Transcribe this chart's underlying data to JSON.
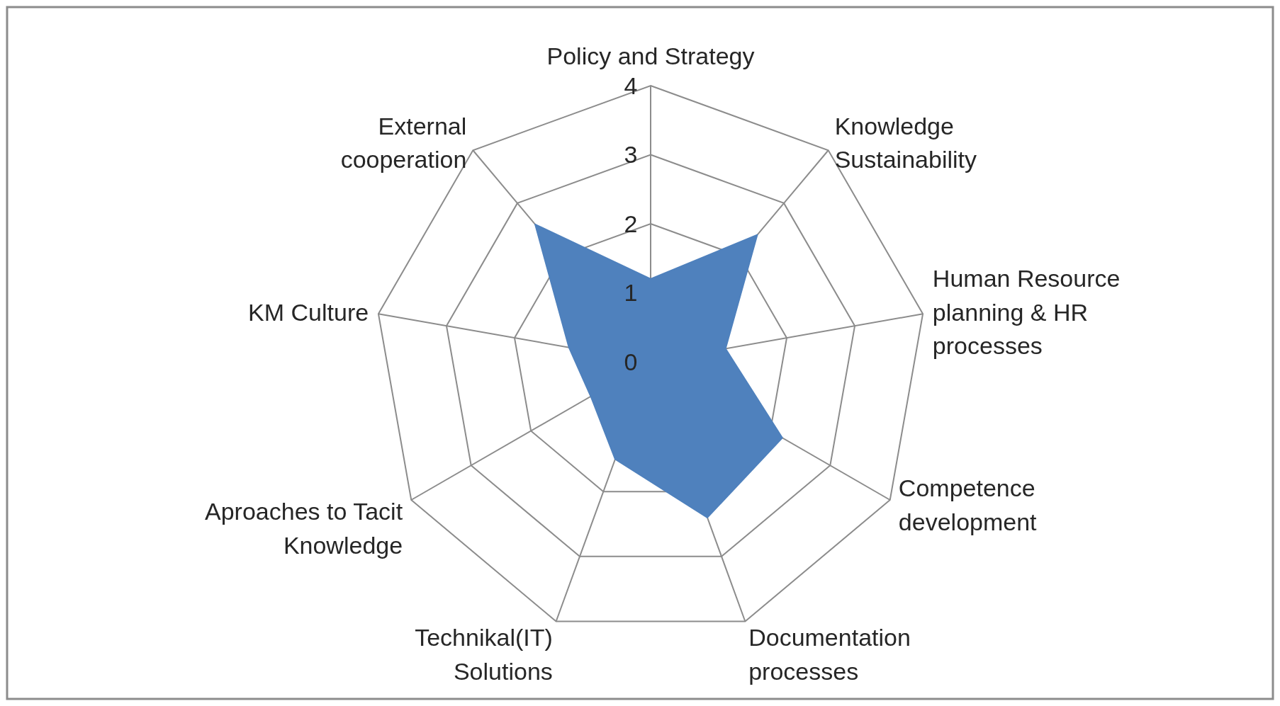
{
  "chart_data": {
    "type": "radar",
    "categories": [
      "Policy and Strategy",
      "Knowledge Sustainability",
      "Human Resource planning & HR processes",
      "Competence development",
      "Documentation processes",
      "Technikal(IT) Solutions",
      "Aproaches to Tacit Knowledge",
      "KM Culture",
      "External cooperation"
    ],
    "series": [
      {
        "color": "#4f81bd",
        "values": [
          1.2,
          2.4,
          1.1,
          2.2,
          2.4,
          1.5,
          1.0,
          1.2,
          2.6
        ]
      }
    ],
    "ylim": [
      0,
      4
    ],
    "yticks": [
      0,
      1,
      2,
      3,
      4
    ],
    "grid": true
  }
}
